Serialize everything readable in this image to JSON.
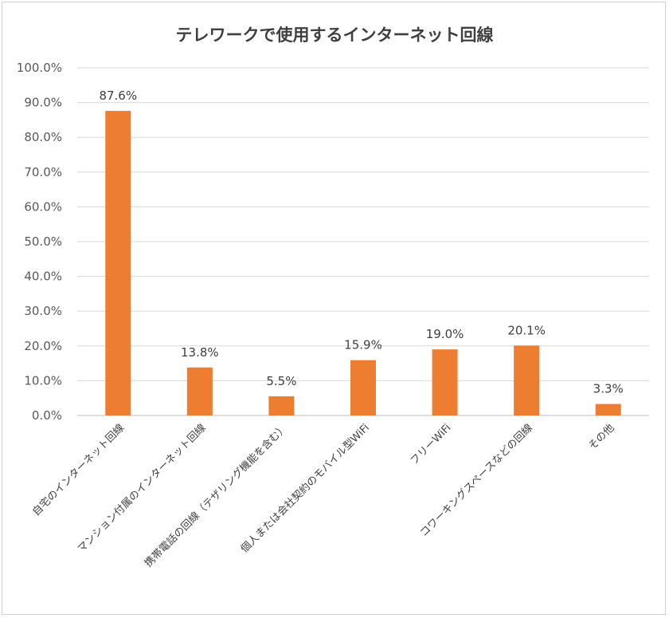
{
  "chart_data": {
    "type": "bar",
    "title": "テレワークで使用するインターネット回線",
    "categories": [
      "自宅のインターネット回線",
      "マンション付属のインターネット回線",
      "携帯電話の回線（テザリング機能を含む）",
      "個人または会社契約のモバイル型WiFi",
      "フリーWiFi",
      "コワーキングスペースなどの回線",
      "その他"
    ],
    "values": [
      87.6,
      13.8,
      5.5,
      15.9,
      19.0,
      20.1,
      3.3
    ],
    "data_labels": [
      "87.6%",
      "13.8%",
      "5.5%",
      "15.9%",
      "19.0%",
      "20.1%",
      "3.3%"
    ],
    "ylim": [
      0,
      100
    ],
    "yticks": [
      "0.0%",
      "10.0%",
      "20.0%",
      "30.0%",
      "40.0%",
      "50.0%",
      "60.0%",
      "70.0%",
      "80.0%",
      "90.0%",
      "100.0%"
    ],
    "ytick_values": [
      0,
      10,
      20,
      30,
      40,
      50,
      60,
      70,
      80,
      90,
      100
    ],
    "bar_color": "#ED7D31",
    "grid": true,
    "legend": "none"
  }
}
